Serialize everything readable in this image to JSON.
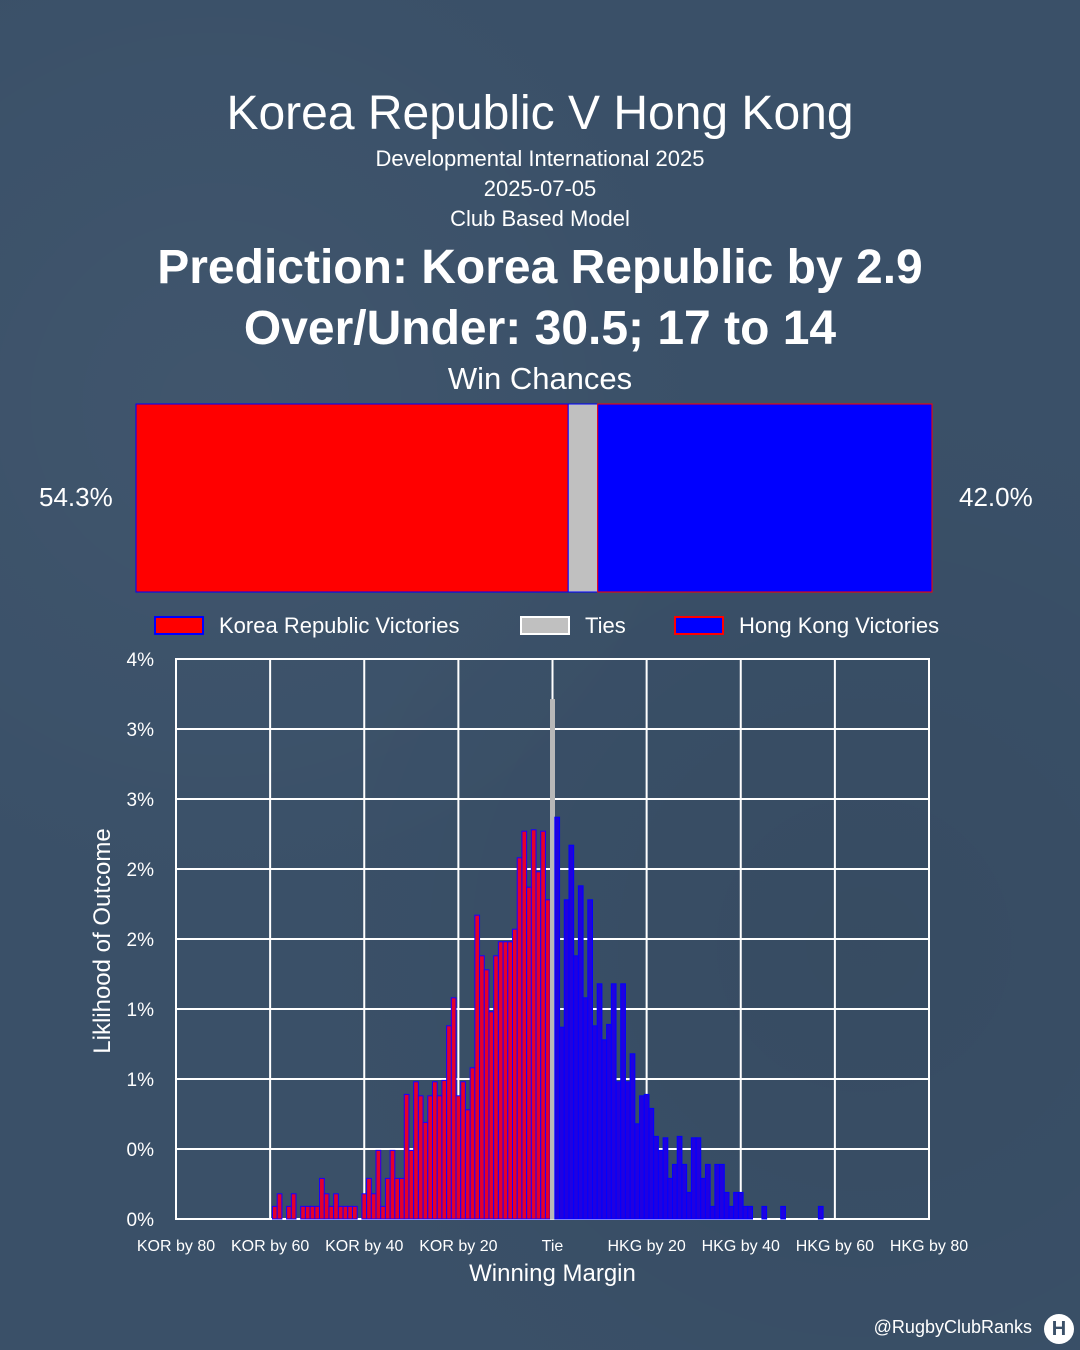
{
  "header": {
    "title": "Korea Republic V Hong Kong",
    "competition": "Developmental International 2025",
    "date": "2025-07-05",
    "model": "Club Based Model",
    "prediction": "Prediction: Korea Republic by 2.9",
    "over_under": "Over/Under: 30.5; 17 to 14"
  },
  "win_chances": {
    "title": "Win Chances",
    "home_label": "54.3%",
    "away_label": "42.0%",
    "home": 54.3,
    "tie": 3.7,
    "away": 42.0,
    "colors": {
      "home": "#ff0000",
      "tie": "#c0c0c0",
      "away": "#0000ff",
      "home_edge": "#0000ff",
      "away_edge": "#ff0000"
    }
  },
  "legend": {
    "home": "Korea Republic Victories",
    "tie": "Ties",
    "away": "Hong Kong Victories"
  },
  "chart_data": {
    "type": "bar",
    "xlabel": "Winning Margin",
    "ylabel": "Liklihood of Outcome",
    "xlim": [
      -80,
      80
    ],
    "ylim": [
      0,
      0.04
    ],
    "grid": true,
    "x_tick_values": [
      -80,
      -60,
      -40,
      -20,
      0,
      20,
      40,
      60,
      80
    ],
    "x_tick_labels": [
      "KOR by 80",
      "KOR by 60",
      "KOR by 40",
      "KOR by 20",
      "Tie",
      "HKG by 20",
      "HKG by 40",
      "HKG by 60",
      "HKG by 80"
    ],
    "y_tick_values": [
      0,
      0.005,
      0.01,
      0.015,
      0.02,
      0.025,
      0.03,
      0.035,
      0.04
    ],
    "y_tick_labels": [
      "0%",
      "0%",
      "1%",
      "1%",
      "2%",
      "2%",
      "3%",
      "3%",
      "4%"
    ],
    "series": [
      {
        "name": "Korea Republic Victories",
        "margins": [
          -59,
          -58,
          -56,
          -55,
          -53,
          -52,
          -51,
          -50,
          -49,
          -48,
          -47,
          -46,
          -45,
          -44,
          -43,
          -42,
          -40,
          -39,
          -38,
          -37,
          -36,
          -35,
          -34,
          -33,
          -32,
          -31,
          -30,
          -29,
          -28,
          -27,
          -26,
          -25,
          -24,
          -23,
          -22,
          -21,
          -20,
          -19,
          -18,
          -17,
          -16,
          -15,
          -14,
          -13,
          -12,
          -11,
          -10,
          -9,
          -8,
          -7,
          -6,
          -5,
          -4,
          -3,
          -2,
          -1
        ],
        "values": [
          0.0009,
          0.0018,
          0.0009,
          0.0018,
          0.0009,
          0.0009,
          0.0009,
          0.0009,
          0.0029,
          0.0018,
          0.0009,
          0.0018,
          0.0009,
          0.0009,
          0.0009,
          0.0009,
          0.0018,
          0.0029,
          0.0018,
          0.0049,
          0.0009,
          0.0029,
          0.0049,
          0.0029,
          0.0029,
          0.0089,
          0.0049,
          0.0098,
          0.0088,
          0.0069,
          0.0088,
          0.0098,
          0.0088,
          0.0099,
          0.0138,
          0.0158,
          0.0088,
          0.0098,
          0.0078,
          0.0108,
          0.0217,
          0.0188,
          0.0178,
          0.0148,
          0.0188,
          0.0198,
          0.0198,
          0.0198,
          0.0207,
          0.0258,
          0.0277,
          0.0237,
          0.0278,
          0.0248,
          0.0277,
          0.0228
        ]
      },
      {
        "name": "Ties",
        "margins": [
          0
        ],
        "values": [
          0.0371
        ]
      },
      {
        "name": "Hong Kong Victories",
        "margins": [
          1,
          2,
          3,
          4,
          5,
          6,
          7,
          8,
          9,
          10,
          11,
          12,
          13,
          14,
          15,
          16,
          17,
          18,
          19,
          20,
          21,
          22,
          23,
          24,
          25,
          26,
          27,
          28,
          29,
          30,
          31,
          32,
          33,
          34,
          35,
          36,
          37,
          38,
          39,
          40,
          41,
          42,
          45,
          49,
          57
        ],
        "values": [
          0.0287,
          0.0137,
          0.0228,
          0.0267,
          0.0188,
          0.0238,
          0.0158,
          0.0228,
          0.0138,
          0.0168,
          0.0128,
          0.0139,
          0.0168,
          0.0098,
          0.0168,
          0.0098,
          0.0118,
          0.0068,
          0.0088,
          0.0089,
          0.0079,
          0.0059,
          0.0049,
          0.0058,
          0.0029,
          0.0039,
          0.0059,
          0.0039,
          0.0019,
          0.0058,
          0.0058,
          0.0029,
          0.0039,
          0.0009,
          0.0039,
          0.0039,
          0.0019,
          0.0009,
          0.0019,
          0.0019,
          0.0009,
          0.0009,
          0.0009,
          0.0009,
          0.0009
        ]
      }
    ]
  },
  "watermark": {
    "handle": "@RugbyClubRanks",
    "logo_text": "H",
    "logo": "rugby-posts-logo"
  }
}
